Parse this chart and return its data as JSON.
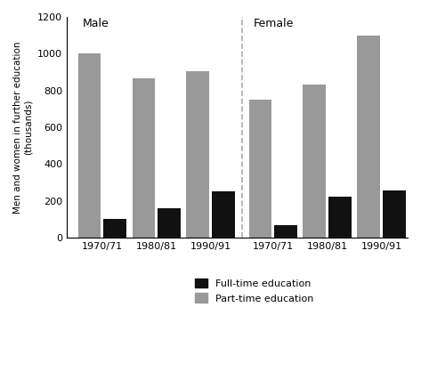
{
  "periods": [
    "1970/71",
    "1980/81",
    "1990/91"
  ],
  "male_fulltime": [
    100,
    160,
    250
  ],
  "male_parttime": [
    1000,
    865,
    905
  ],
  "female_fulltime": [
    65,
    220,
    255
  ],
  "female_parttime": [
    750,
    830,
    1100
  ],
  "ylabel_line1": "Men and women in further education",
  "ylabel_line2": "(thousands)",
  "male_label": "Male",
  "female_label": "Female",
  "ylim": [
    0,
    1200
  ],
  "yticks": [
    0,
    200,
    400,
    600,
    800,
    1000,
    1200
  ],
  "fulltime_color": "#111111",
  "parttime_color": "#999999",
  "bar_width": 0.42,
  "legend_fulltime": "Full-time education",
  "legend_parttime": "Part-time education",
  "background_color": "#ffffff"
}
